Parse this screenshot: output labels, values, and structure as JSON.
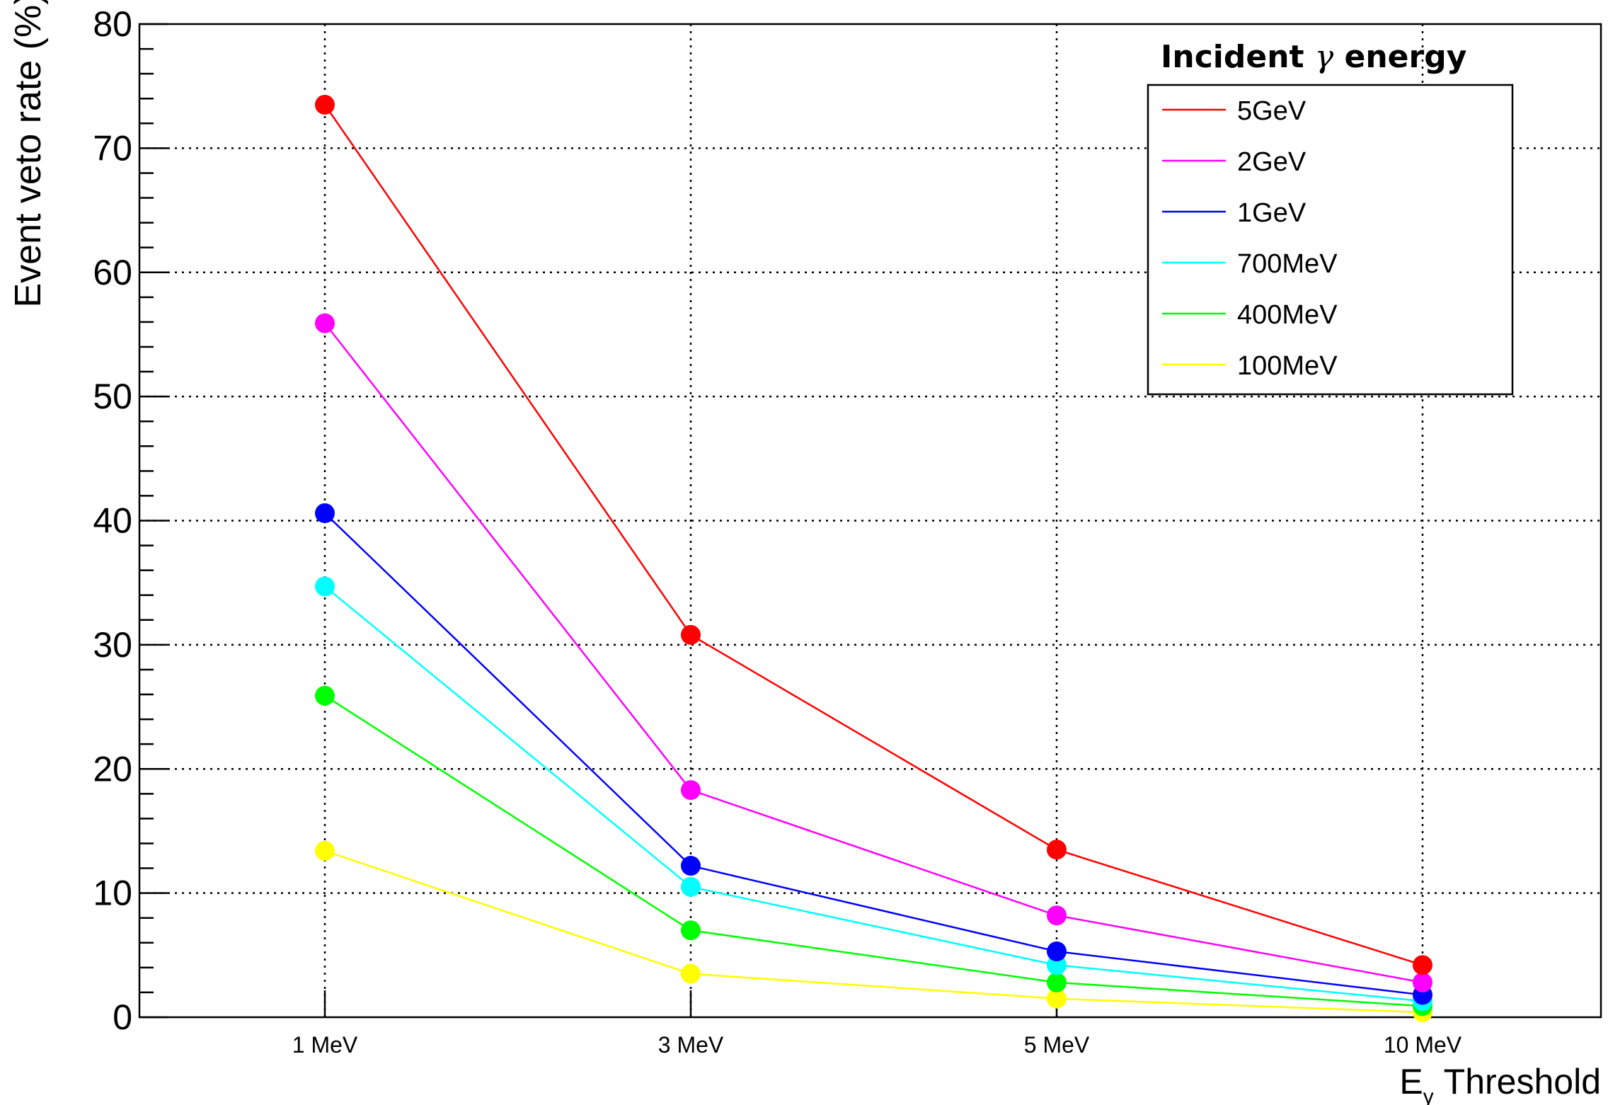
{
  "chart_data": {
    "type": "line",
    "categories": [
      "1 MeV",
      "3 MeV",
      "5 MeV",
      "10 MeV"
    ],
    "ylabel": "Event veto rate (%)",
    "xlabel_main": "E",
    "xlabel_sub": "γ",
    "xlabel_rest": " Threshold",
    "ylim": [
      0,
      80
    ],
    "yticks": [
      "0",
      "10",
      "20",
      "30",
      "40",
      "50",
      "60",
      "70",
      "80"
    ],
    "grid": true,
    "legend": {
      "title_prefix": "Incident ",
      "title_symbol": "γ",
      "title_suffix": " energy",
      "placement": "top-right"
    },
    "series": [
      {
        "name": "5GeV",
        "color": "#ff0000",
        "values": [
          73.5,
          30.8,
          13.5,
          4.2
        ]
      },
      {
        "name": "2GeV",
        "color": "#ff00ff",
        "values": [
          55.9,
          18.3,
          8.2,
          2.8
        ]
      },
      {
        "name": "1GeV",
        "color": "#0000ff",
        "values": [
          40.6,
          12.2,
          5.3,
          1.8
        ]
      },
      {
        "name": "700MeV",
        "color": "#00ffff",
        "values": [
          34.7,
          10.5,
          4.2,
          1.3
        ]
      },
      {
        "name": "400MeV",
        "color": "#00ff00",
        "values": [
          25.9,
          7.0,
          2.8,
          0.9
        ]
      },
      {
        "name": "100MeV",
        "color": "#ffff00",
        "values": [
          13.4,
          3.5,
          1.5,
          0.4
        ]
      }
    ]
  }
}
